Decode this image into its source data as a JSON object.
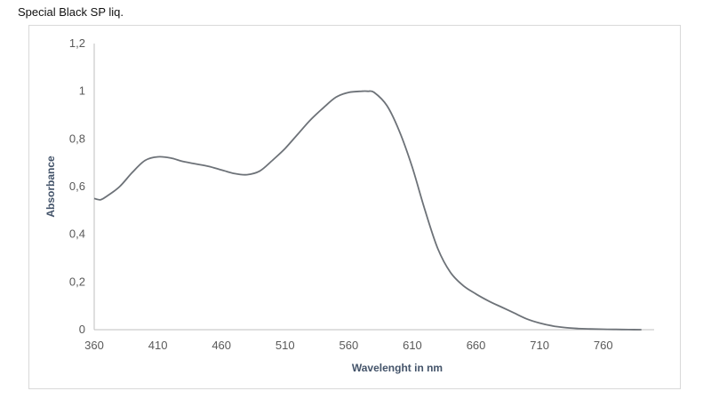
{
  "page": {
    "title": "Special Black SP liq."
  },
  "chart_data": {
    "type": "line",
    "title": "",
    "xlabel": "Wavelenght in nm",
    "ylabel": "Absorbance",
    "xlim": [
      360,
      800
    ],
    "ylim": [
      0,
      1.2
    ],
    "x_ticks": [
      360,
      410,
      460,
      510,
      560,
      610,
      660,
      710,
      760
    ],
    "x_tick_labels": [
      "360",
      "410",
      "460",
      "510",
      "560",
      "610",
      "660",
      "710",
      "760"
    ],
    "y_ticks": [
      0,
      0.2,
      0.4,
      0.6,
      0.8,
      1.0,
      1.2
    ],
    "y_tick_labels": [
      "0",
      "0,2",
      "0,4",
      "0,6",
      "0,8",
      "1",
      "1,2"
    ],
    "grid": false,
    "legend": "none",
    "line_color": "#6d7278",
    "series": [
      {
        "x": [
          360,
          365,
          370,
          380,
          390,
          400,
          410,
          420,
          430,
          440,
          450,
          460,
          470,
          480,
          490,
          500,
          510,
          520,
          530,
          540,
          550,
          560,
          570,
          575,
          580,
          590,
          600,
          610,
          620,
          630,
          640,
          650,
          660,
          670,
          680,
          690,
          700,
          710,
          720,
          730,
          740,
          750,
          760,
          770,
          780,
          790
        ],
        "y": [
          0.55,
          0.545,
          0.56,
          0.6,
          0.66,
          0.71,
          0.725,
          0.72,
          0.705,
          0.695,
          0.685,
          0.67,
          0.655,
          0.65,
          0.665,
          0.71,
          0.76,
          0.82,
          0.88,
          0.93,
          0.975,
          0.995,
          1.0,
          1.0,
          0.995,
          0.94,
          0.83,
          0.68,
          0.5,
          0.34,
          0.24,
          0.185,
          0.15,
          0.12,
          0.095,
          0.07,
          0.045,
          0.028,
          0.016,
          0.009,
          0.005,
          0.003,
          0.002,
          0.001,
          0.0005,
          0.0
        ]
      }
    ]
  }
}
